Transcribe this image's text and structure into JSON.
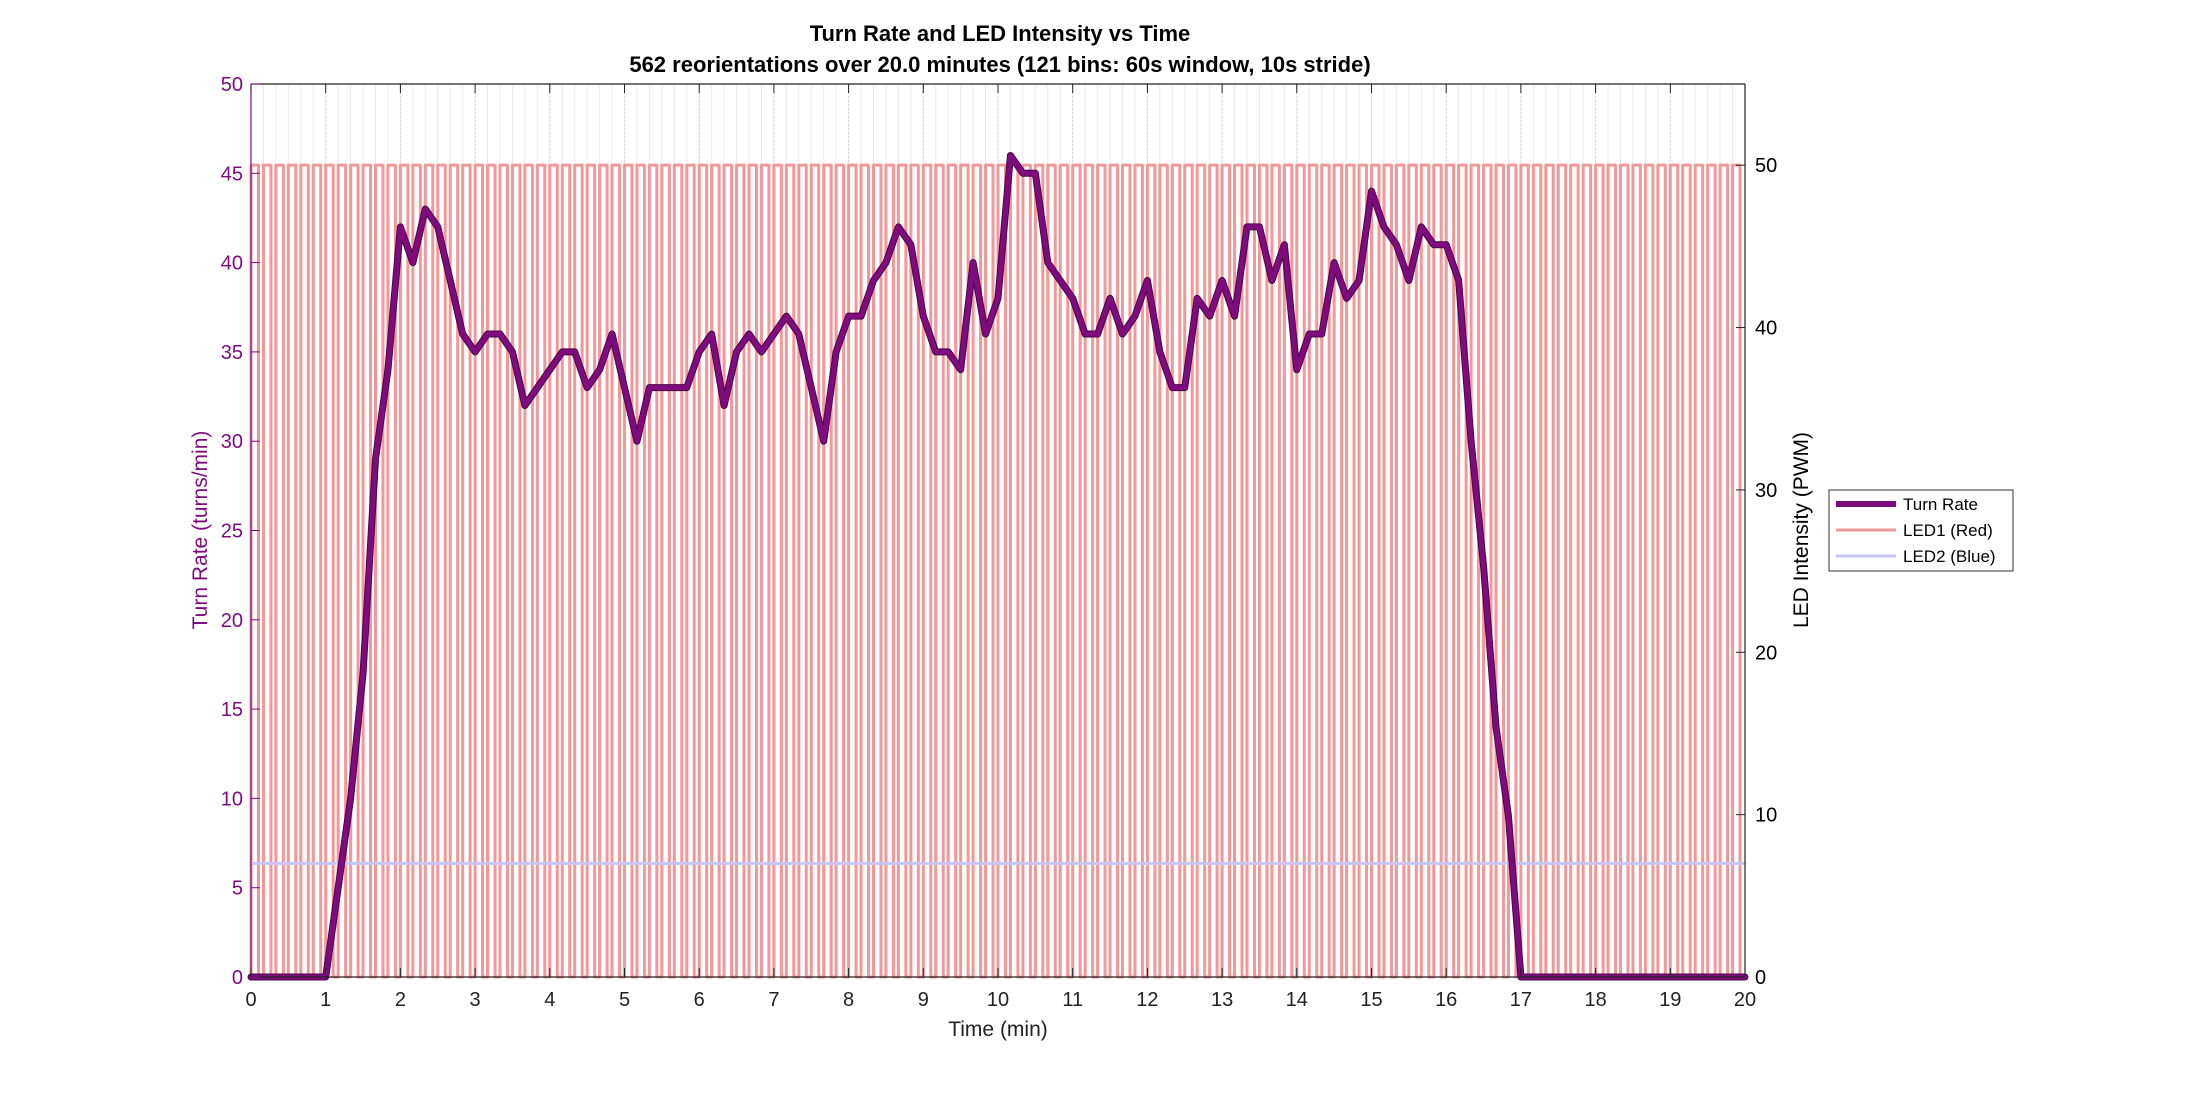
{
  "chart_data": {
    "type": "line",
    "title": "Turn Rate and LED Intensity vs Time",
    "subtitle": "562 reorientations over 20.0 minutes (121 bins: 60s window, 10s stride)",
    "xlabel": "Time (min)",
    "ylabel_left": "Turn Rate (turns/min)",
    "ylabel_right": "LED Intensity (PWM)",
    "xlim": [
      0,
      20
    ],
    "ylim_left": [
      0,
      50
    ],
    "ylim_right": [
      0,
      55
    ],
    "x_ticks": [
      0,
      1,
      2,
      3,
      4,
      5,
      6,
      7,
      8,
      9,
      10,
      11,
      12,
      13,
      14,
      15,
      16,
      17,
      18,
      19,
      20
    ],
    "y_ticks_left": [
      0,
      5,
      10,
      15,
      20,
      25,
      30,
      35,
      40,
      45,
      50
    ],
    "y_ticks_right": [
      0,
      10,
      20,
      30,
      40,
      50
    ],
    "grid": true,
    "legend_position": "right",
    "colors": {
      "turn_rate": "#7e0c7e",
      "led1": "#f29898",
      "led2": "#c7c7f5",
      "left_axis": "#7e0c7e"
    },
    "series": [
      {
        "name": "Turn Rate",
        "axis": "left",
        "x": [
          0,
          0.1667,
          0.3333,
          0.5,
          0.6667,
          0.8333,
          1.0,
          1.1667,
          1.3333,
          1.5,
          1.6667,
          1.8333,
          2.0,
          2.1667,
          2.3333,
          2.5,
          2.6667,
          2.8333,
          3.0,
          3.1667,
          3.3333,
          3.5,
          3.6667,
          3.8333,
          4.0,
          4.1667,
          4.3333,
          4.5,
          4.6667,
          4.8333,
          5.0,
          5.1667,
          5.3333,
          5.5,
          5.6667,
          5.8333,
          6.0,
          6.1667,
          6.3333,
          6.5,
          6.6667,
          6.8333,
          7.0,
          7.1667,
          7.3333,
          7.5,
          7.6667,
          7.8333,
          8.0,
          8.1667,
          8.3333,
          8.5,
          8.6667,
          8.8333,
          9.0,
          9.1667,
          9.3333,
          9.5,
          9.6667,
          9.8333,
          10.0,
          10.1667,
          10.3333,
          10.5,
          10.6667,
          10.8333,
          11.0,
          11.1667,
          11.3333,
          11.5,
          11.6667,
          11.8333,
          12.0,
          12.1667,
          12.3333,
          12.5,
          12.6667,
          12.8333,
          13.0,
          13.1667,
          13.3333,
          13.5,
          13.6667,
          13.8333,
          14.0,
          14.1667,
          14.3333,
          14.5,
          14.6667,
          14.8333,
          15.0,
          15.1667,
          15.3333,
          15.5,
          15.6667,
          15.8333,
          16.0,
          16.1667,
          16.3333,
          16.5,
          16.6667,
          16.8333,
          17.0,
          17.1667,
          17.3333,
          17.5,
          17.6667,
          17.8333,
          18.0,
          18.1667,
          18.3333,
          18.5,
          18.6667,
          18.8333,
          19.0,
          19.1667,
          19.3333,
          19.5,
          19.6667,
          19.8333,
          20.0
        ],
        "values": [
          0,
          0,
          0,
          0,
          0,
          0,
          0,
          5,
          10,
          17,
          29,
          34,
          42,
          40,
          43,
          42,
          39,
          36,
          35,
          36,
          36,
          35,
          32,
          33,
          34,
          35,
          35,
          33,
          34,
          36,
          33,
          30,
          33,
          33,
          33,
          33,
          35,
          36,
          32,
          35,
          36,
          35,
          36,
          37,
          36,
          33,
          30,
          35,
          37,
          37,
          39,
          40,
          42,
          41,
          37,
          35,
          35,
          34,
          40,
          36,
          38,
          46,
          45,
          45,
          40,
          39,
          38,
          36,
          36,
          38,
          36,
          37,
          39,
          35,
          33,
          33,
          38,
          37,
          39,
          37,
          42,
          42,
          39,
          41,
          34,
          36,
          36,
          40,
          38,
          39,
          44,
          42,
          41,
          39,
          42,
          41,
          41,
          39,
          30,
          23,
          14,
          9,
          0,
          0,
          0,
          0,
          0,
          0,
          0,
          0,
          0,
          0,
          0,
          0,
          0,
          0,
          0,
          0,
          0,
          0,
          0
        ]
      },
      {
        "name": "LED1 (Red)",
        "axis": "right",
        "pattern": "square wave, 0 to 50 PWM",
        "period_min": 0.1667,
        "on_fraction": 0.6,
        "high": 50,
        "low": 0
      },
      {
        "name": "LED2 (Blue)",
        "axis": "right",
        "pattern": "constant",
        "value": 7
      }
    ]
  }
}
